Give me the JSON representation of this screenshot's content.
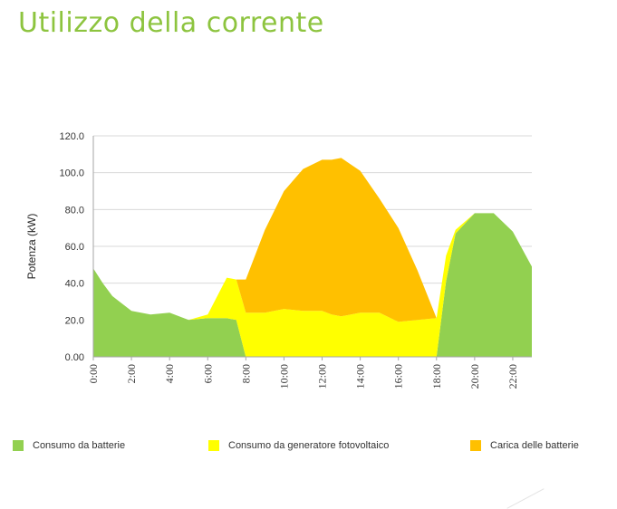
{
  "page": {
    "title": "Utilizzo della corrente"
  },
  "chart_data": {
    "type": "area",
    "title": "",
    "xlabel": "",
    "ylabel": "Potenza (kW)",
    "ylim": [
      0,
      120
    ],
    "xlim": [
      0,
      23
    ],
    "stacked": true,
    "grid": true,
    "legend_position": "bottom",
    "y_ticks": [
      0,
      20,
      40,
      60,
      80,
      100,
      120
    ],
    "y_tick_labels": [
      "0.00",
      "20.0",
      "40.0",
      "60.0",
      "80.0",
      "100.0",
      "120.0"
    ],
    "x_ticks": [
      0,
      2,
      4,
      6,
      8,
      10,
      12,
      14,
      16,
      18,
      20,
      22
    ],
    "x_tick_labels": [
      "0:00",
      "2:00",
      "4:00",
      "6:00",
      "8:00",
      "10:00",
      "12:00",
      "14:00",
      "16:00",
      "18:00",
      "20:00",
      "22:00"
    ],
    "x": [
      0,
      0.5,
      1,
      2,
      3,
      4,
      5,
      6,
      7,
      7.5,
      8,
      9,
      10,
      11,
      12,
      12.5,
      13,
      14,
      15,
      16,
      17,
      18,
      18.5,
      19,
      20,
      21,
      22,
      23
    ],
    "series": [
      {
        "name": "Consumo da batterie",
        "color": "#92d050",
        "values": [
          48,
          40,
          33,
          25,
          23,
          24,
          20,
          21,
          21,
          20,
          0,
          0,
          0,
          0,
          0,
          0,
          0,
          0,
          0,
          0,
          0,
          0,
          41,
          67,
          78,
          78,
          68,
          49
        ]
      },
      {
        "name": "Consumo da generatore fotovoltaico",
        "color": "#ffff00",
        "values": [
          0,
          0,
          0,
          0,
          0,
          0,
          0,
          2,
          22,
          22,
          24,
          24,
          26,
          25,
          25,
          23,
          22,
          24,
          24,
          19,
          20,
          21,
          14,
          2,
          0,
          0,
          0,
          0
        ]
      },
      {
        "name": "Carica delle batterie",
        "color": "#ffc000",
        "values": [
          0,
          0,
          0,
          0,
          0,
          0,
          0,
          0,
          0,
          0,
          18,
          45,
          64,
          77,
          82,
          84,
          86,
          77,
          62,
          51,
          27,
          0,
          0,
          0,
          0,
          0,
          0,
          0
        ]
      }
    ]
  }
}
